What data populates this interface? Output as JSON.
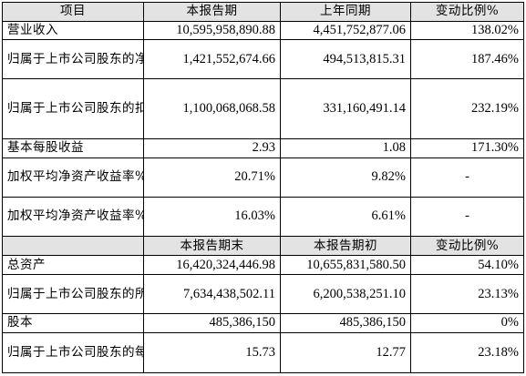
{
  "header1": {
    "item": "项目",
    "current": "本报告期",
    "prior": "上年同期",
    "change": "变动比例%"
  },
  "section1_rows": [
    {
      "label": "营业收入",
      "current": "10,595,958,890.88",
      "prior": "4,451,752,877.06",
      "change": "138.02%"
    },
    {
      "label": "归属于上市公司股东的净利润",
      "current": "1,421,552,674.66",
      "prior": "494,513,815.31",
      "change": "187.46%"
    },
    {
      "label": "归属于上市公司股东的扣除非经常性损益的净利润",
      "current": "1,100,068,068.58",
      "prior": "331,160,491.14",
      "change": "232.19%"
    },
    {
      "label": "基本每股收益",
      "current": "2.93",
      "prior": "1.08",
      "change": "171.30%"
    },
    {
      "label": "加权平均净资产收益率%（扣非前）",
      "current": "20.71%",
      "prior": "9.82%",
      "change": "-"
    },
    {
      "label": "加权平均净资产收益率%（扣非后）",
      "current": "16.03%",
      "prior": "6.61%",
      "change": "-"
    }
  ],
  "header2": {
    "item": "",
    "current": "本报告期末",
    "prior": "本报告期初",
    "change": "变动比例%"
  },
  "section2_rows": [
    {
      "label": "总资产",
      "current": "16,420,324,446.98",
      "prior": "10,655,831,580.50",
      "change": "54.10%"
    },
    {
      "label": "归属于上市公司股东的所有者权益",
      "current": "7,634,438,502.11",
      "prior": "6,200,538,251.10",
      "change": "23.13%"
    },
    {
      "label": "股本",
      "current": "485,386,150",
      "prior": "485,386,150",
      "change": "0%"
    },
    {
      "label": "归属于上市公司股东的每股净资产",
      "current": "15.73",
      "prior": "12.77",
      "change": "23.18%"
    }
  ],
  "colors": {
    "header_fill": "#e3e3e3",
    "border": "#000000",
    "text": "#000000"
  }
}
